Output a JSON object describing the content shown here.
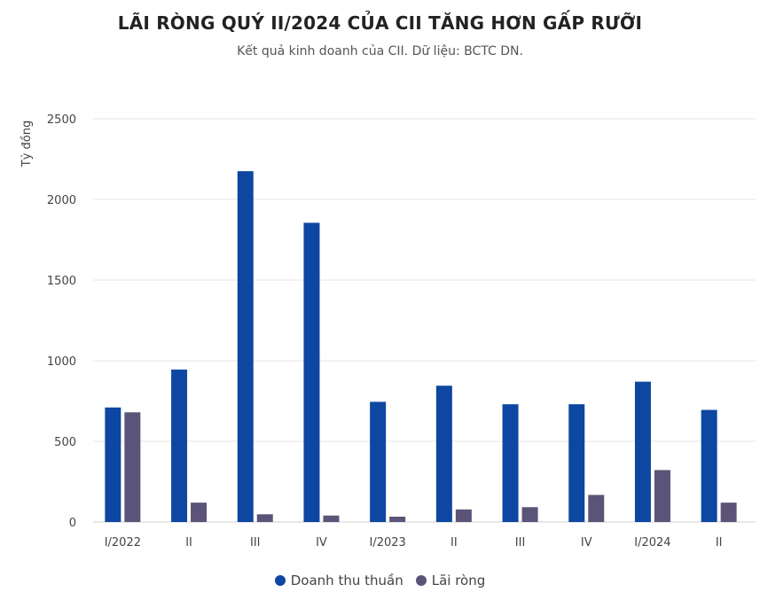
{
  "header": {
    "title": "LÃI RÒNG QUÝ II/2024 CỦA CII TĂNG HƠN GẤP RƯỠI",
    "subtitle": "Kết quả kinh doanh của CII. Dữ liệu: BCTC DN."
  },
  "chart_data": {
    "type": "bar",
    "title": "LÃI RÒNG QUÝ II/2024 CỦA CII TĂNG HƠN GẤP RƯỠI",
    "subtitle": "Kết quả kinh doanh của CII. Dữ liệu: BCTC DN.",
    "xlabel": "",
    "ylabel": "Tỷ đồng",
    "ylim": [
      0,
      2500
    ],
    "yticks": [
      0,
      500,
      1000,
      1500,
      2000,
      2500
    ],
    "grid": true,
    "legend_position": "bottom",
    "categories": [
      "I/2022",
      "II",
      "III",
      "IV",
      "I/2023",
      "II",
      "III",
      "IV",
      "I/2024",
      "II"
    ],
    "series": [
      {
        "name": "Doanh thu thuần",
        "color": "#0d47a1",
        "values": [
          710,
          945,
          2175,
          1855,
          745,
          845,
          730,
          730,
          870,
          695
        ]
      },
      {
        "name": "Lãi ròng",
        "color": "#5b5478",
        "values": [
          680,
          120,
          48,
          40,
          33,
          78,
          92,
          168,
          322,
          120
        ]
      }
    ]
  }
}
